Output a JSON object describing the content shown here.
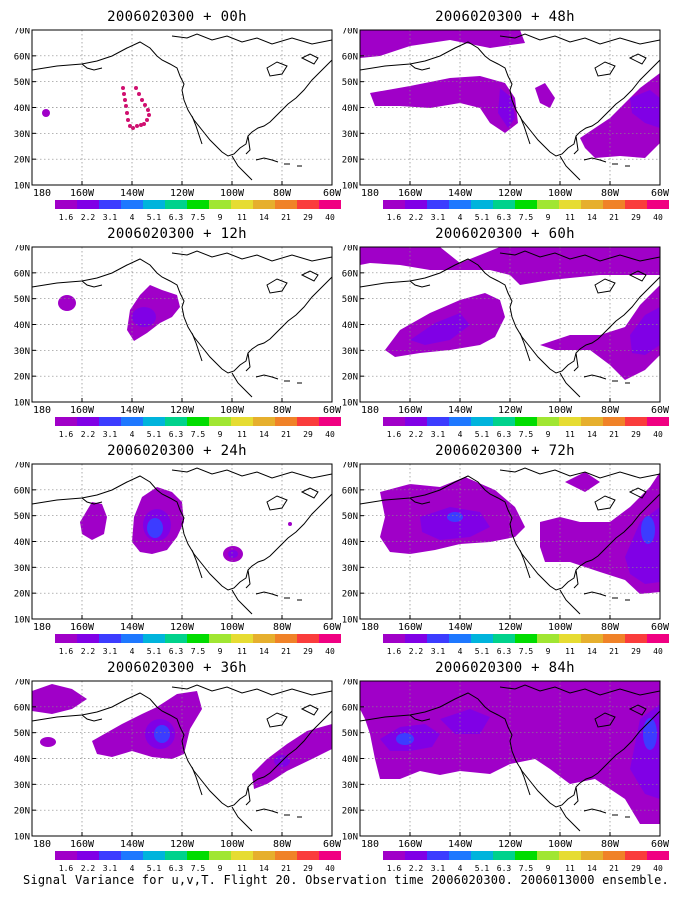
{
  "panels": [
    {
      "title": "2006020300 + 00h",
      "blobs": [],
      "dots": true
    },
    {
      "title": "2006020300 + 48h"
    },
    {
      "title": "2006020300 + 12h"
    },
    {
      "title": "2006020300 + 60h"
    },
    {
      "title": "2006020300 + 24h"
    },
    {
      "title": "2006020300 + 72h"
    },
    {
      "title": "2006020300 + 36h"
    },
    {
      "title": "2006020300 + 84h"
    }
  ],
  "axes": {
    "y_labels": [
      "70N",
      "60N",
      "50N",
      "40N",
      "30N",
      "20N",
      "10N"
    ],
    "x_labels": [
      "180",
      "160W",
      "140W",
      "120W",
      "100W",
      "80W",
      "60W"
    ]
  },
  "colorbar": {
    "labels": [
      "1.6",
      "2.2",
      "3.1",
      "4",
      "5.1",
      "6.3",
      "7.5",
      "9",
      "11",
      "14",
      "21",
      "29",
      "40"
    ],
    "colors": [
      "#a000c8",
      "#8000e6",
      "#3c3cff",
      "#1e78ff",
      "#00b4dc",
      "#00d28c",
      "#00dc00",
      "#a0e632",
      "#e6dc32",
      "#e6af2d",
      "#f08228",
      "#fa3c3c",
      "#f00082"
    ]
  },
  "caption": "Signal Variance for u,v,T. Flight 20. Observation time 2006020300. 2006013000 ensemble."
}
